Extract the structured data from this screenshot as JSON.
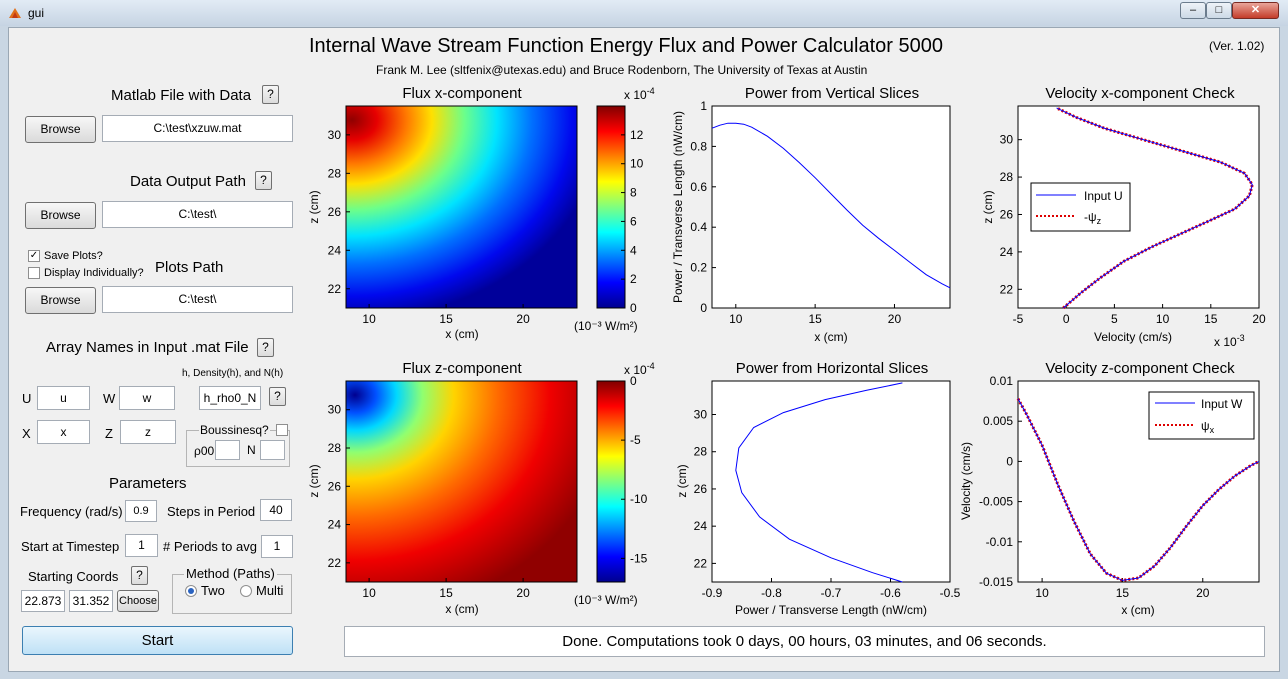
{
  "window": {
    "title": "gui",
    "minimize_glyph": "–",
    "maximize_glyph": "□",
    "close_glyph": "✕"
  },
  "header": {
    "title": "Internal Wave Stream Function Energy Flux and Power Calculator 5000",
    "version": "(Ver. 1.02)",
    "authors": "Frank M. Lee (sltfenix@utexas.edu) and Bruce Rodenborn, The University of Texas at Austin"
  },
  "left_panel": {
    "help_label": "?",
    "matlab_file": {
      "label": "Matlab File with Data",
      "browse": "Browse",
      "value": "C:\\test\\xzuw.mat"
    },
    "output_path": {
      "label": "Data Output Path",
      "browse": "Browse",
      "value": "C:\\test\\"
    },
    "plots": {
      "save_label": "Save Plots?",
      "save_checked": true,
      "display_label": "Display Individually?",
      "display_checked": false,
      "label": "Plots Path",
      "browse": "Browse",
      "value": "C:\\test\\"
    },
    "arrays": {
      "label": "Array Names in Input .mat File",
      "u_label": "U",
      "u_value": "u",
      "w_label": "W",
      "w_value": "w",
      "x_label": "X",
      "x_value": "x",
      "z_label": "Z",
      "z_value": "z",
      "h_label": "h, Density(h), and N(h)",
      "h_value": "h_rho0_N",
      "boussinesq_label": "Boussinesq?",
      "rho_label": "ρ00",
      "n_label": "N"
    },
    "parameters": {
      "label": "Parameters",
      "frequency_label": "Frequency (rad/s)",
      "frequency_value": "0.9",
      "steps_label": "Steps in Period",
      "steps_value": "40",
      "start_label": "Start at Timestep",
      "start_value": "1",
      "periods_label": "# Periods to avg",
      "periods_value": "1",
      "coords_label": "Starting Coords",
      "coord_x": "22.873",
      "coord_z": "31.352",
      "choose": "Choose",
      "method_label": "Method (Paths)",
      "method_two": "Two",
      "method_multi": "Multi"
    },
    "start_button": "Start"
  },
  "status": "Done. Computations took 0 days, 00 hours, 03 minutes, and 06 seconds.",
  "colors": {
    "line_blue": "#0000ff",
    "dotted_red": "#dd0000"
  },
  "plots": {
    "flux_x": {
      "title": "Flux x-component",
      "xlabel": "x (cm)",
      "ylabel": "z (cm)",
      "xticks": [
        "10",
        "15",
        "20"
      ],
      "yticks": [
        "22",
        "24",
        "26",
        "28",
        "30"
      ],
      "cbar_exp": "x 10",
      "cbar_exp_power": "-4",
      "cbar_ticks": [
        "0",
        "2",
        "4",
        "6",
        "8",
        "10",
        "12"
      ],
      "cbar_units": "(10⁻³ W/m²)"
    },
    "flux_z": {
      "title": "Flux z-component",
      "xlabel": "x (cm)",
      "ylabel": "z (cm)",
      "xticks": [
        "10",
        "15",
        "20"
      ],
      "yticks": [
        "22",
        "24",
        "26",
        "28",
        "30"
      ],
      "cbar_exp": "x 10",
      "cbar_exp_power": "-4",
      "cbar_ticks": [
        "0",
        "-5",
        "-10",
        "-15"
      ],
      "cbar_units": "(10⁻³ W/m²)"
    },
    "power_vertical": {
      "title": "Power from Vertical Slices",
      "xlabel": "x (cm)",
      "ylabel": "Power / Transverse Length (nW/cm)",
      "xticks": [
        "10",
        "15",
        "20"
      ],
      "yticks": [
        "0",
        "0.2",
        "0.4",
        "0.6",
        "0.8",
        "1"
      ]
    },
    "power_horizontal": {
      "title": "Power from Horizontal Slices",
      "xlabel": "Power / Transverse Length (nW/cm)",
      "ylabel": "z (cm)",
      "xticks": [
        "-0.9",
        "-0.8",
        "-0.7",
        "-0.6",
        "-0.5"
      ],
      "yticks": [
        "22",
        "24",
        "26",
        "28",
        "30"
      ]
    },
    "vel_x": {
      "title": "Velocity x-component Check",
      "xlabel": "Velocity (cm/s)",
      "ylabel": "z (cm)",
      "xticks": [
        "-5",
        "0",
        "5",
        "10",
        "15",
        "20"
      ],
      "yticks": [
        "22",
        "24",
        "26",
        "28",
        "30"
      ],
      "x_exp": "x 10",
      "x_exp_power": "-3",
      "legend_1": "Input U",
      "legend_2": "-ψ",
      "legend_2_sub": "z"
    },
    "vel_z": {
      "title": "Velocity z-component Check",
      "xlabel": "x (cm)",
      "ylabel": "Velocity (cm/s)",
      "xticks": [
        "10",
        "15",
        "20"
      ],
      "yticks": [
        "0.01",
        "0.005",
        "0",
        "-0.005",
        "-0.01",
        "-0.015"
      ],
      "legend_1": "Input W",
      "legend_2": "ψ",
      "legend_2_sub": "x"
    }
  },
  "chart_data": [
    {
      "type": "heatmap",
      "title": "Flux x-component",
      "xlabel": "x (cm)",
      "ylabel": "z (cm)",
      "xlim": [
        8.5,
        23.5
      ],
      "ylim": [
        21,
        31.5
      ],
      "colorbar_range": [
        0,
        14
      ],
      "colorbar_scale": "x 10^-4",
      "units": "(10^-3 W/m^2)"
    },
    {
      "type": "heatmap",
      "title": "Flux z-component",
      "xlabel": "x (cm)",
      "ylabel": "z (cm)",
      "xlim": [
        8.5,
        23.5
      ],
      "ylim": [
        21,
        31.5
      ],
      "colorbar_range": [
        -17,
        0
      ],
      "colorbar_scale": "x 10^-4",
      "units": "(10^-3 W/m^2)"
    },
    {
      "type": "line",
      "title": "Power from Vertical Slices",
      "xlabel": "x (cm)",
      "ylabel": "Power / Transverse Length (nW/cm)",
      "xlim": [
        8.5,
        23.5
      ],
      "ylim": [
        0,
        1
      ],
      "x": [
        8.5,
        9,
        9.5,
        10,
        10.5,
        11,
        12,
        13,
        14,
        15,
        16,
        17,
        18,
        19,
        20,
        21,
        22,
        23,
        23.5
      ],
      "y": [
        0.89,
        0.905,
        0.915,
        0.915,
        0.91,
        0.895,
        0.85,
        0.79,
        0.72,
        0.645,
        0.565,
        0.485,
        0.41,
        0.345,
        0.285,
        0.225,
        0.165,
        0.12,
        0.1
      ]
    },
    {
      "type": "line",
      "title": "Power from Horizontal Slices",
      "xlabel": "Power / Transverse Length (nW/cm)",
      "ylabel": "z (cm)",
      "xlim": [
        -0.9,
        -0.5
      ],
      "ylim": [
        21,
        31.8
      ],
      "x": [
        -0.58,
        -0.63,
        -0.7,
        -0.77,
        -0.82,
        -0.85,
        -0.86,
        -0.855,
        -0.83,
        -0.78,
        -0.71,
        -0.64,
        -0.58
      ],
      "y": [
        21,
        21.5,
        22.3,
        23.3,
        24.5,
        25.8,
        27,
        28.2,
        29.3,
        30.1,
        30.8,
        31.3,
        31.7
      ]
    },
    {
      "type": "line",
      "title": "Velocity x-component Check",
      "xlabel": "Velocity (cm/s)",
      "ylabel": "z (cm)",
      "xlim": [
        -5,
        20
      ],
      "ylim": [
        21,
        31.8
      ],
      "x_scale": "x 10^-3",
      "series": [
        {
          "name": "Input U",
          "x": [
            -0.3,
            1.5,
            3.5,
            6,
            9,
            12,
            15,
            17.5,
            19,
            19.3,
            18.5,
            16,
            12,
            8,
            4,
            1,
            -1
          ],
          "y": [
            21,
            21.8,
            22.6,
            23.5,
            24.3,
            25,
            25.7,
            26.3,
            27,
            27.6,
            28.2,
            28.8,
            29.4,
            30,
            30.6,
            31.2,
            31.7
          ]
        },
        {
          "name": "-ψz",
          "same_as": "Input U"
        }
      ]
    },
    {
      "type": "line",
      "title": "Velocity z-component Check",
      "xlabel": "x (cm)",
      "ylabel": "Velocity (cm/s)",
      "xlim": [
        8.5,
        23.5
      ],
      "ylim": [
        -0.015,
        0.01
      ],
      "series": [
        {
          "name": "Input W",
          "x": [
            8.5,
            9,
            10,
            11,
            12,
            13,
            14,
            15,
            16,
            17,
            18,
            19,
            20,
            21,
            22,
            23,
            23.5
          ],
          "y": [
            0.0078,
            0.006,
            0.002,
            -0.003,
            -0.0075,
            -0.0115,
            -0.0139,
            -0.0148,
            -0.0145,
            -0.013,
            -0.0107,
            -0.008,
            -0.0055,
            -0.0035,
            -0.0018,
            -0.0005,
            0
          ]
        },
        {
          "name": "ψx",
          "same_as": "Input W"
        }
      ]
    }
  ]
}
